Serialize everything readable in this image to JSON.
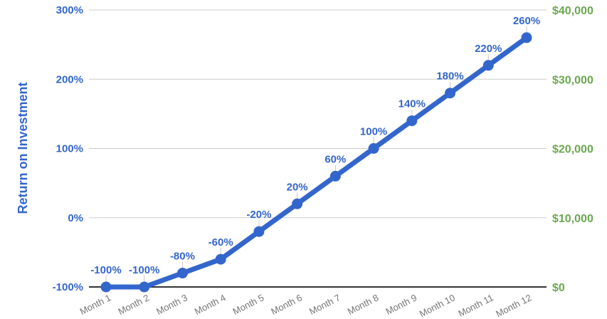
{
  "chart_data": {
    "type": "line",
    "title": "",
    "ylabel": "Return on Investment",
    "categories": [
      "Month 1",
      "Month 2",
      "Month 3",
      "Month 4",
      "Month 5",
      "Month 6",
      "Month 7",
      "Month 8",
      "Month 9",
      "Month 10",
      "Month 11",
      "Month 12"
    ],
    "series": [
      {
        "values": [
          -100,
          -100,
          -80,
          -60,
          -20,
          20,
          60,
          100,
          140,
          180,
          220,
          260
        ],
        "point_labels": [
          "-100%",
          "-100%",
          "-80%",
          "-60%",
          "-20%",
          "20%",
          "60%",
          "100%",
          "140%",
          "180%",
          "220%",
          "260%"
        ],
        "color": "#3366cc"
      }
    ],
    "left_axis": {
      "tick_labels": [
        "300%",
        "200%",
        "100%",
        "0%",
        "-100%"
      ],
      "tick_values": [
        300,
        200,
        100,
        0,
        -100
      ],
      "range": [
        -100,
        300
      ],
      "color": "#3366cc"
    },
    "right_axis": {
      "tick_labels": [
        "$40,000",
        "$30,000",
        "$20,000",
        "$10,000",
        "$0"
      ],
      "tick_values": [
        40000,
        30000,
        20000,
        10000,
        0
      ],
      "range": [
        0,
        40000
      ],
      "color": "#6aa84f"
    },
    "x_axis": {
      "label_color": "#757575"
    },
    "grid": {
      "show": true,
      "color": "#cccccc",
      "baseline_color": "#333333",
      "annotation_stem_color": "#c7c7c7"
    },
    "legend": "none",
    "background": "#ffffff"
  }
}
